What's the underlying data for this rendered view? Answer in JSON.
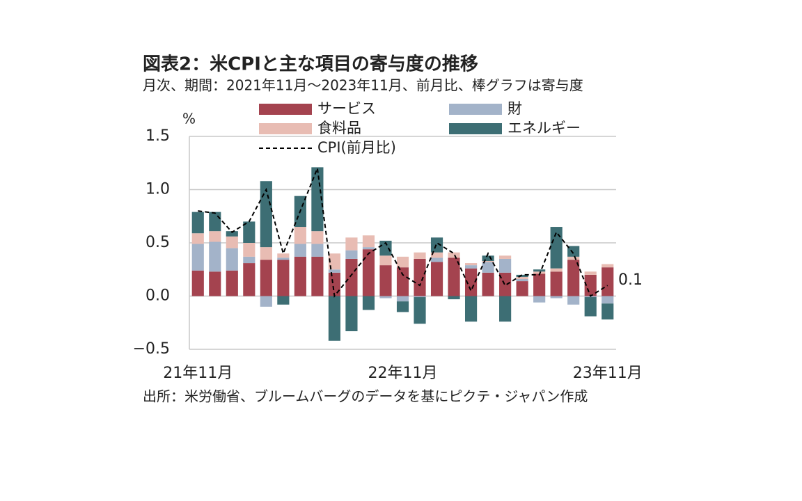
{
  "chart_data": {
    "type": "bar",
    "stacked": true,
    "title": "図表2：米CPIと主な項目の寄与度の推移",
    "subtitle": "月次、期間：2021年11月～2023年11月、前月比、棒グラフは寄与度",
    "y_unit": "%",
    "source": "出所：米労働省、ブルームバーグのデータを基にピクテ・ジャパン作成",
    "annotation": "0.1",
    "categories": [
      "21年11月",
      null,
      null,
      null,
      null,
      null,
      null,
      null,
      null,
      null,
      null,
      null,
      "22年11月",
      null,
      null,
      null,
      null,
      null,
      null,
      null,
      null,
      null,
      null,
      null,
      "23年11月"
    ],
    "ylim": [
      -0.5,
      1.5
    ],
    "yticks": [
      {
        "value": 1.5,
        "label": "1.5"
      },
      {
        "value": 1.0,
        "label": "1.0"
      },
      {
        "value": 0.5,
        "label": "0.5"
      },
      {
        "value": 0.0,
        "label": "0.0"
      },
      {
        "value": -0.5,
        "label": "−0.5"
      }
    ],
    "grid": true,
    "series": [
      {
        "name": "サービス",
        "color": "#a4434f",
        "values": [
          0.24,
          0.23,
          0.24,
          0.31,
          0.34,
          0.34,
          0.37,
          0.37,
          0.22,
          0.35,
          0.44,
          0.29,
          0.27,
          0.35,
          0.32,
          0.36,
          0.26,
          0.22,
          0.22,
          0.14,
          0.21,
          0.23,
          0.34,
          0.2,
          0.27
        ]
      },
      {
        "name": "財",
        "color": "#a3b3c9",
        "values": [
          0.25,
          0.28,
          0.21,
          0.06,
          -0.1,
          0.02,
          0.12,
          0.12,
          0.03,
          0.08,
          0.02,
          -0.02,
          -0.05,
          -0.01,
          0.04,
          0.0,
          0.03,
          0.1,
          0.13,
          0.02,
          -0.06,
          -0.02,
          -0.08,
          -0.01,
          -0.07
        ]
      },
      {
        "name": "食料品",
        "color": "#e8bcb3",
        "values": [
          0.1,
          0.1,
          0.11,
          0.13,
          0.12,
          0.04,
          0.16,
          0.12,
          0.15,
          0.12,
          0.11,
          0.09,
          0.1,
          0.06,
          0.05,
          0.05,
          0.02,
          0.01,
          0.03,
          0.02,
          0.02,
          0.03,
          0.03,
          0.03,
          0.03
        ]
      },
      {
        "name": "エネルギー",
        "color": "#3d6e74",
        "values": [
          0.2,
          0.18,
          0.05,
          0.2,
          0.62,
          -0.08,
          0.29,
          0.6,
          -0.42,
          -0.33,
          -0.13,
          0.14,
          -0.1,
          -0.25,
          0.14,
          -0.03,
          -0.24,
          0.05,
          -0.24,
          0.02,
          0.02,
          0.39,
          0.1,
          -0.18,
          -0.15
        ]
      },
      {
        "name": "CPI(前月比)",
        "color": "#000000",
        "type": "line",
        "dashed": true,
        "values": [
          0.8,
          0.78,
          0.6,
          0.7,
          1.0,
          0.4,
          0.8,
          1.2,
          0.0,
          0.2,
          0.4,
          0.5,
          0.2,
          0.1,
          0.5,
          0.4,
          0.05,
          0.4,
          0.1,
          0.2,
          0.2,
          0.6,
          0.4,
          0.0,
          0.1
        ]
      }
    ]
  }
}
